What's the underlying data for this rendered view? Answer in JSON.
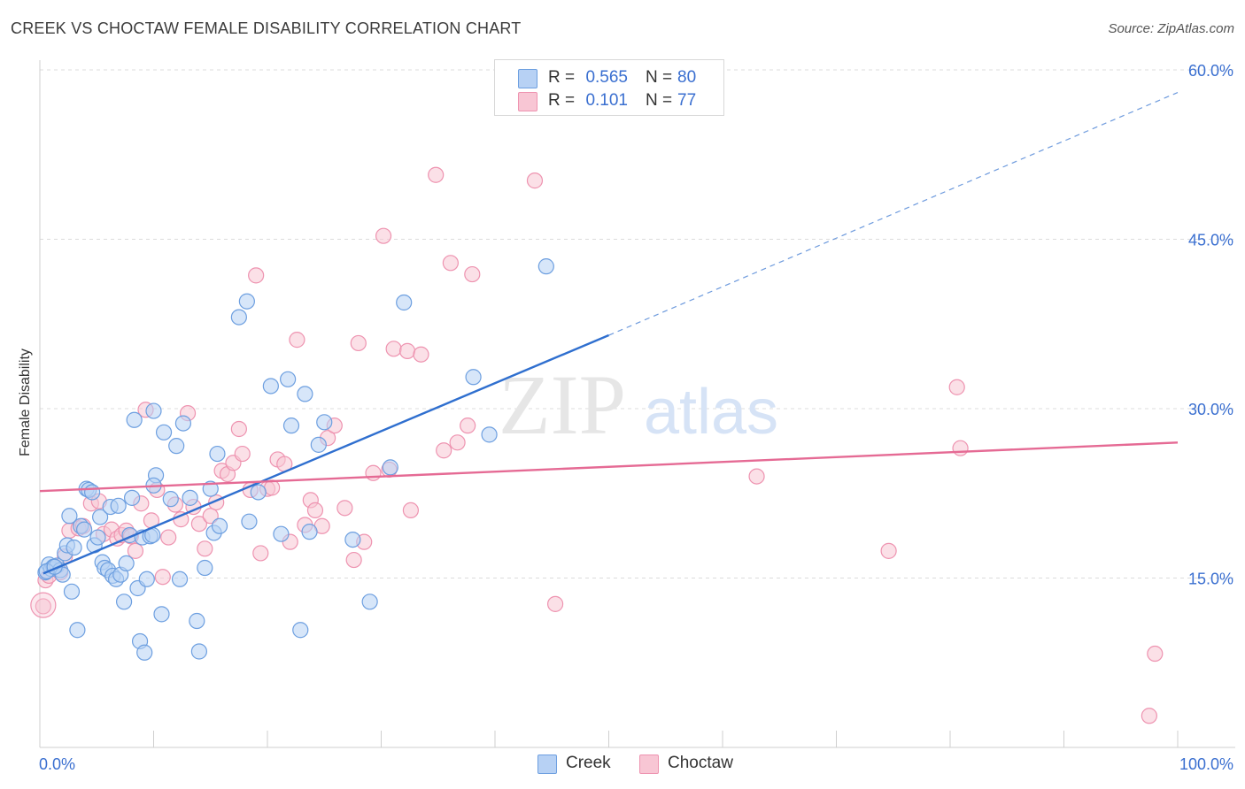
{
  "title": "CREEK VS CHOCTAW FEMALE DISABILITY CORRELATION CHART",
  "source": "Source: ZipAtlas.com",
  "watermark": {
    "zip": "ZIP",
    "atlas": "atlas"
  },
  "colors": {
    "creek_fill": "#b7d1f4",
    "creek_stroke": "#6d9fe0",
    "creek_line": "#2f6fcf",
    "choctaw_fill": "#f8c6d4",
    "choctaw_stroke": "#ee93b0",
    "choctaw_line": "#e56a94",
    "accent_text": "#3a6fd0",
    "grid": "#dcdcdc"
  },
  "legend": {
    "rows": [
      {
        "r_label": "R =",
        "r_value": "0.565",
        "n_label": "N =",
        "n_value": "80"
      },
      {
        "r_label": "R =",
        "r_value": "0.101",
        "n_label": "N =",
        "n_value": "77"
      }
    ]
  },
  "chart_data": {
    "type": "scatter",
    "xlabel": "",
    "ylabel": "Female Disability",
    "xlim": [
      0,
      100
    ],
    "ylim": [
      0,
      60
    ],
    "x_tick_labels": [
      {
        "value": 0,
        "label": "0.0%"
      },
      {
        "value": 100,
        "label": "100.0%"
      }
    ],
    "y_tick_labels": [
      {
        "value": 15,
        "label": "15.0%"
      },
      {
        "value": 30,
        "label": "30.0%"
      },
      {
        "value": 45,
        "label": "45.0%"
      },
      {
        "value": 60,
        "label": "60.0%"
      }
    ],
    "grid": true,
    "legend_position": "top-center",
    "series": [
      {
        "name": "Creek",
        "r": 0.565,
        "n": 80,
        "trend": {
          "x0": 0.3,
          "y0": 15.4,
          "x1": 50,
          "y1": 36.5,
          "dashed_to_x": 100,
          "dashed_to_y": 58.0
        },
        "points": [
          [
            0.5,
            15.5
          ],
          [
            0.8,
            16.2
          ],
          [
            1.0,
            15.8
          ],
          [
            1.2,
            16.0
          ],
          [
            1.5,
            16.1
          ],
          [
            1.8,
            15.7
          ],
          [
            2.0,
            15.3
          ],
          [
            2.2,
            17.2
          ],
          [
            2.4,
            17.9
          ],
          [
            2.6,
            20.5
          ],
          [
            2.8,
            13.8
          ],
          [
            3.0,
            17.7
          ],
          [
            3.3,
            10.4
          ],
          [
            3.6,
            19.6
          ],
          [
            3.9,
            19.3
          ],
          [
            4.1,
            22.9
          ],
          [
            4.3,
            22.8
          ],
          [
            4.6,
            22.6
          ],
          [
            4.8,
            17.9
          ],
          [
            5.1,
            18.6
          ],
          [
            5.3,
            20.4
          ],
          [
            5.5,
            16.4
          ],
          [
            5.7,
            15.9
          ],
          [
            6.0,
            15.7
          ],
          [
            6.2,
            21.3
          ],
          [
            6.4,
            15.2
          ],
          [
            6.7,
            14.9
          ],
          [
            6.9,
            21.4
          ],
          [
            7.1,
            15.3
          ],
          [
            7.4,
            12.9
          ],
          [
            7.6,
            16.3
          ],
          [
            7.9,
            18.8
          ],
          [
            8.1,
            22.1
          ],
          [
            8.3,
            29.0
          ],
          [
            8.6,
            14.1
          ],
          [
            8.8,
            9.4
          ],
          [
            9.0,
            18.6
          ],
          [
            9.2,
            8.4
          ],
          [
            9.4,
            14.9
          ],
          [
            9.7,
            18.7
          ],
          [
            10.0,
            29.8
          ],
          [
            10.2,
            24.1
          ],
          [
            10.0,
            23.2
          ],
          [
            10.7,
            11.8
          ],
          [
            10.9,
            27.9
          ],
          [
            11.5,
            22.0
          ],
          [
            12.0,
            26.7
          ],
          [
            12.3,
            14.9
          ],
          [
            12.6,
            28.7
          ],
          [
            13.2,
            22.1
          ],
          [
            13.8,
            11.2
          ],
          [
            14.0,
            8.5
          ],
          [
            14.5,
            15.9
          ],
          [
            15.0,
            22.9
          ],
          [
            15.3,
            19.0
          ],
          [
            15.8,
            19.6
          ],
          [
            15.6,
            26.0
          ],
          [
            17.5,
            38.1
          ],
          [
            18.2,
            39.5
          ],
          [
            18.4,
            20.0
          ],
          [
            19.2,
            22.6
          ],
          [
            20.3,
            32.0
          ],
          [
            21.2,
            18.9
          ],
          [
            21.8,
            32.6
          ],
          [
            22.1,
            28.5
          ],
          [
            22.9,
            10.4
          ],
          [
            23.3,
            31.3
          ],
          [
            23.7,
            19.1
          ],
          [
            24.5,
            26.8
          ],
          [
            25.0,
            28.8
          ],
          [
            27.5,
            18.4
          ],
          [
            29.0,
            12.9
          ],
          [
            30.8,
            24.8
          ],
          [
            32.0,
            39.4
          ],
          [
            38.1,
            32.8
          ],
          [
            39.5,
            27.7
          ],
          [
            44.5,
            42.6
          ],
          [
            0.6,
            15.6
          ],
          [
            1.3,
            16.0
          ],
          [
            9.9,
            18.8
          ]
        ]
      },
      {
        "name": "Choctaw",
        "r": 0.101,
        "n": 77,
        "trend": {
          "x0": 0,
          "y0": 22.7,
          "x1": 100,
          "y1": 27.0
        },
        "points": [
          [
            0.3,
            12.5
          ],
          [
            0.5,
            14.8
          ],
          [
            0.8,
            15.2
          ],
          [
            1.3,
            16.0
          ],
          [
            1.8,
            15.5
          ],
          [
            2.2,
            16.9
          ],
          [
            2.6,
            19.2
          ],
          [
            3.4,
            19.4
          ],
          [
            3.8,
            19.6
          ],
          [
            4.5,
            21.6
          ],
          [
            5.2,
            21.8
          ],
          [
            5.6,
            18.9
          ],
          [
            6.3,
            19.3
          ],
          [
            6.8,
            18.5
          ],
          [
            7.2,
            18.8
          ],
          [
            7.6,
            19.2
          ],
          [
            8.0,
            18.7
          ],
          [
            8.4,
            17.4
          ],
          [
            8.9,
            21.6
          ],
          [
            9.3,
            29.9
          ],
          [
            9.8,
            20.1
          ],
          [
            10.3,
            22.8
          ],
          [
            10.8,
            15.1
          ],
          [
            11.3,
            18.6
          ],
          [
            11.9,
            21.5
          ],
          [
            12.4,
            20.2
          ],
          [
            13.0,
            29.6
          ],
          [
            13.5,
            21.3
          ],
          [
            14.0,
            19.8
          ],
          [
            14.5,
            17.6
          ],
          [
            15.0,
            20.5
          ],
          [
            15.5,
            21.7
          ],
          [
            16.0,
            24.5
          ],
          [
            16.5,
            24.2
          ],
          [
            17.0,
            25.2
          ],
          [
            17.5,
            28.2
          ],
          [
            17.8,
            26.0
          ],
          [
            18.5,
            22.8
          ],
          [
            19.0,
            41.8
          ],
          [
            19.4,
            17.2
          ],
          [
            20.0,
            22.9
          ],
          [
            20.4,
            23.0
          ],
          [
            20.9,
            25.5
          ],
          [
            21.5,
            25.1
          ],
          [
            22.0,
            18.2
          ],
          [
            22.6,
            36.1
          ],
          [
            23.3,
            19.7
          ],
          [
            23.8,
            21.9
          ],
          [
            24.2,
            21.0
          ],
          [
            24.8,
            19.6
          ],
          [
            25.3,
            27.4
          ],
          [
            25.9,
            28.5
          ],
          [
            26.8,
            21.2
          ],
          [
            27.6,
            16.6
          ],
          [
            28.0,
            35.8
          ],
          [
            28.5,
            18.2
          ],
          [
            29.3,
            24.3
          ],
          [
            30.2,
            45.3
          ],
          [
            30.7,
            24.6
          ],
          [
            31.1,
            35.3
          ],
          [
            32.3,
            35.1
          ],
          [
            32.6,
            21.0
          ],
          [
            33.5,
            34.8
          ],
          [
            34.8,
            50.7
          ],
          [
            35.5,
            26.3
          ],
          [
            36.1,
            42.9
          ],
          [
            36.7,
            27.0
          ],
          [
            37.6,
            28.5
          ],
          [
            38.0,
            41.9
          ],
          [
            43.5,
            50.2
          ],
          [
            45.3,
            12.7
          ],
          [
            63.0,
            24.0
          ],
          [
            74.6,
            17.4
          ],
          [
            80.6,
            31.9
          ],
          [
            80.9,
            26.5
          ],
          [
            98.0,
            8.3
          ],
          [
            97.5,
            2.8
          ]
        ]
      }
    ]
  }
}
